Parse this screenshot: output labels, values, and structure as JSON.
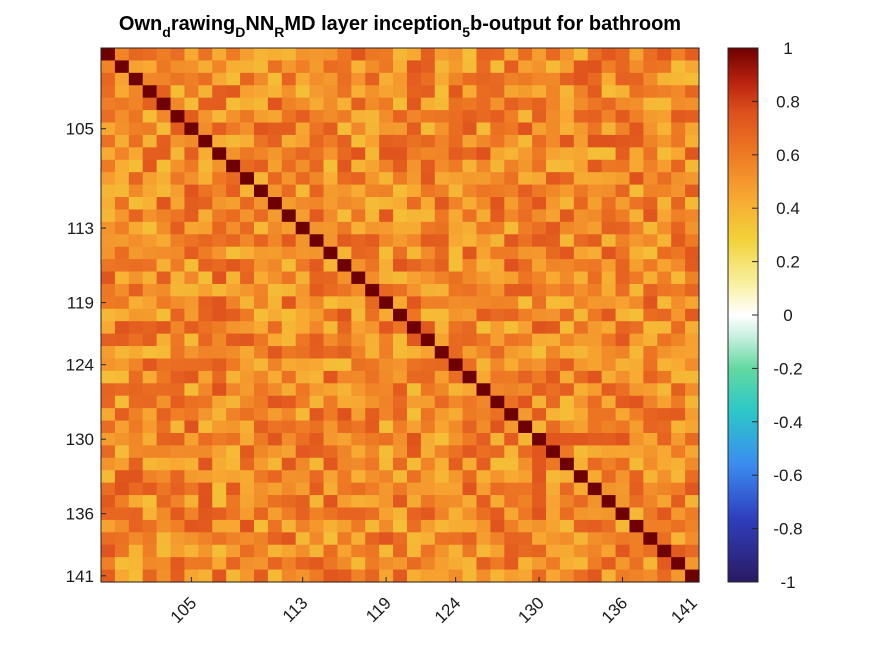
{
  "chart_data": {
    "type": "heatmap",
    "title": {
      "parts": [
        {
          "text": "Own",
          "sub": false
        },
        {
          "text": "d",
          "sub": true
        },
        {
          "text": "rawing",
          "sub": false
        },
        {
          "text": "D",
          "sub": true
        },
        {
          "text": "NN",
          "sub": false
        },
        {
          "text": "R",
          "sub": true
        },
        {
          "text": "MD layer inception",
          "sub": false
        },
        {
          "text": "5",
          "sub": true
        },
        {
          "text": "b-output for bathroom",
          "sub": false
        }
      ]
    },
    "row_range": [
      99,
      141
    ],
    "col_range": [
      99,
      141
    ],
    "x_ticks": [
      "105",
      "113",
      "119",
      "124",
      "130",
      "136",
      "141"
    ],
    "y_ticks": [
      "105",
      "113",
      "119",
      "124",
      "130",
      "136",
      "141"
    ],
    "x_tick_rotation_deg": -45,
    "colorbar": {
      "limits": [
        -1,
        1
      ],
      "ticks": [
        "1",
        "0.8",
        "0.6",
        "0.4",
        "0.2",
        "0",
        "-0.2",
        "-0.4",
        "-0.6",
        "-0.8",
        "-1"
      ],
      "colormap": "diverging dark-blue to white to dark-red"
    },
    "diagonal_value": 1.0,
    "offdiagonal_value_range": [
      0.35,
      0.75
    ],
    "grid": false
  }
}
